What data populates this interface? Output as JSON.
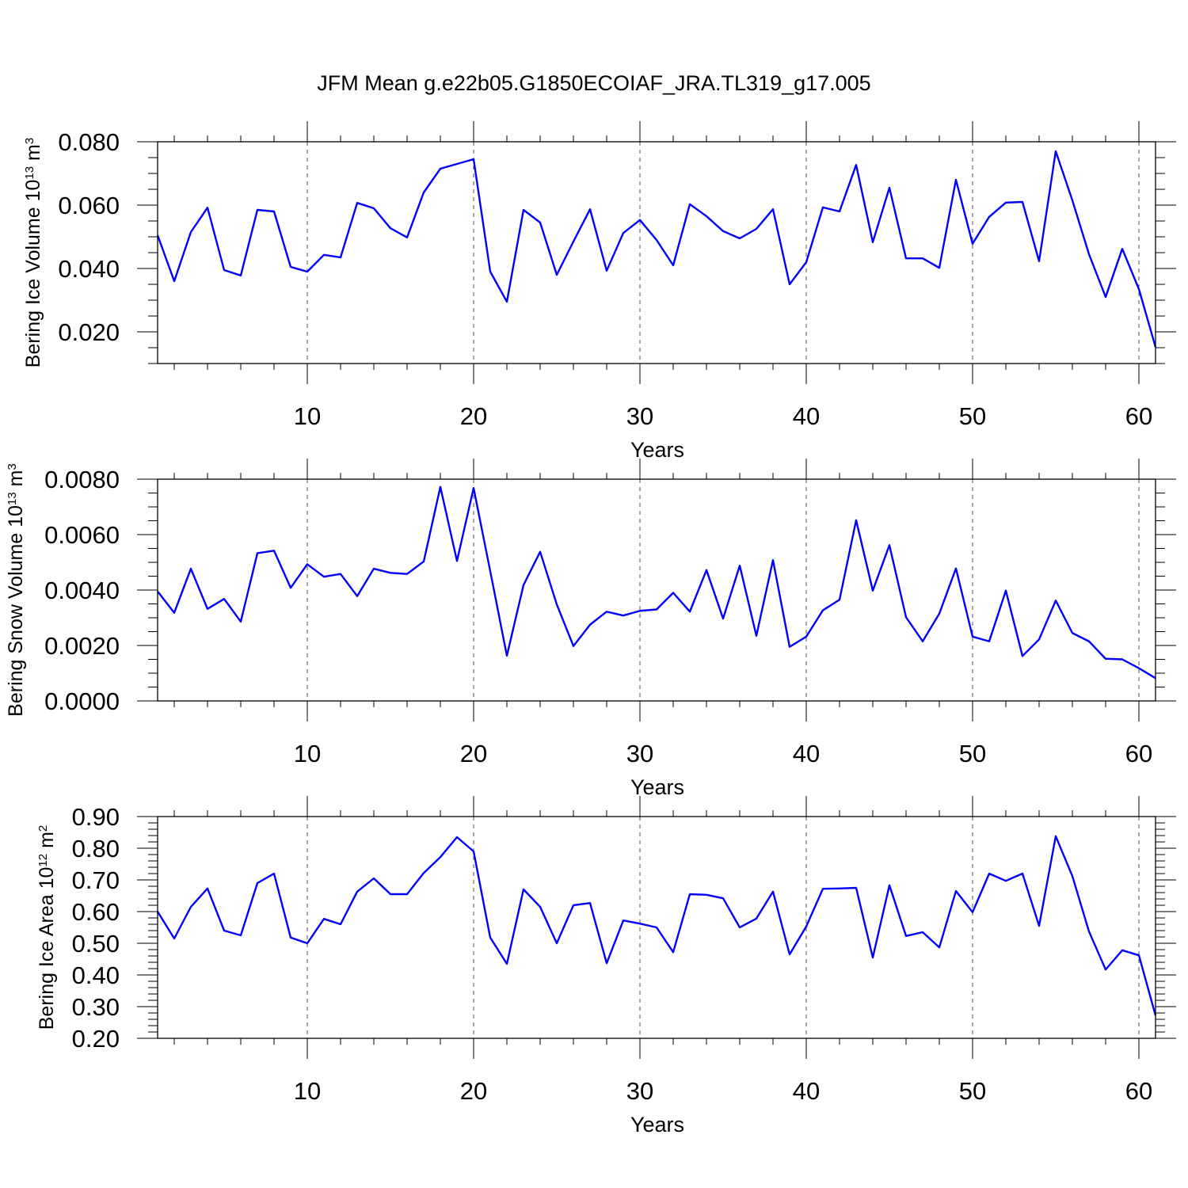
{
  "title": "JFM Mean g.e22b05.G1850ECOIAF_JRA.TL319_g17.005",
  "line_color": "#0000ff",
  "chart_data": [
    {
      "type": "line",
      "id": "ice_volume",
      "xlabel": "Years",
      "ylabel": {
        "main": "Bering Ice Volume 10",
        "sup1": "13",
        "mid": " m",
        "sup2": "3"
      },
      "xlim": [
        1,
        61
      ],
      "ylim": [
        0.01,
        0.08
      ],
      "x_ticks": [
        10,
        20,
        30,
        40,
        50,
        60
      ],
      "x_tick_labels": [
        "10",
        "20",
        "30",
        "40",
        "50",
        "60"
      ],
      "y_ticks": [
        0.02,
        0.04,
        0.06,
        0.08
      ],
      "y_tick_labels": [
        "0.020",
        "0.040",
        "0.060",
        "0.080"
      ],
      "grid": "vertical dashed at labeled x ticks",
      "series": [
        {
          "name": "Bering Ice Volume",
          "x_start": 1,
          "values": [
            0.0505,
            0.036,
            0.0515,
            0.0592,
            0.0395,
            0.0378,
            0.0585,
            0.058,
            0.0405,
            0.039,
            0.0443,
            0.0435,
            0.0607,
            0.059,
            0.0527,
            0.0498,
            0.064,
            0.0715,
            0.073,
            0.0745,
            0.039,
            0.0295,
            0.0585,
            0.0545,
            0.038,
            0.0485,
            0.0587,
            0.0393,
            0.0512,
            0.0553,
            0.049,
            0.041,
            0.0603,
            0.0565,
            0.0518,
            0.0495,
            0.0525,
            0.0587,
            0.035,
            0.042,
            0.0593,
            0.058,
            0.0727,
            0.0483,
            0.0655,
            0.0432,
            0.0432,
            0.0402,
            0.068,
            0.0478,
            0.0563,
            0.0608,
            0.061,
            0.0423,
            0.077,
            0.0615,
            0.0445,
            0.031,
            0.0462,
            0.0335,
            0.0152
          ]
        }
      ]
    },
    {
      "type": "line",
      "id": "snow_volume",
      "xlabel": "Years",
      "ylabel": {
        "main": "Bering Snow Volume 10",
        "sup1": "13",
        "mid": " m",
        "sup2": "3"
      },
      "xlim": [
        1,
        61
      ],
      "ylim": [
        0.0,
        0.008
      ],
      "x_ticks": [
        10,
        20,
        30,
        40,
        50,
        60
      ],
      "x_tick_labels": [
        "10",
        "20",
        "30",
        "40",
        "50",
        "60"
      ],
      "y_ticks": [
        0.0,
        0.002,
        0.004,
        0.006,
        0.008
      ],
      "y_tick_labels": [
        "0.0000",
        "0.0020",
        "0.0040",
        "0.0060",
        "0.0080"
      ],
      "grid": "vertical dashed at labeled x ticks",
      "series": [
        {
          "name": "Bering Snow Volume",
          "x_start": 1,
          "values": [
            0.00395,
            0.00318,
            0.00477,
            0.00332,
            0.00368,
            0.00286,
            0.00533,
            0.00542,
            0.00408,
            0.00493,
            0.00448,
            0.00458,
            0.00378,
            0.00477,
            0.00462,
            0.00458,
            0.00503,
            0.00772,
            0.00505,
            0.00768,
            0.00468,
            0.00163,
            0.00418,
            0.00538,
            0.00348,
            0.00198,
            0.00275,
            0.00322,
            0.00308,
            0.00325,
            0.0033,
            0.0039,
            0.00322,
            0.00472,
            0.00297,
            0.00488,
            0.00235,
            0.00508,
            0.00195,
            0.00232,
            0.00327,
            0.00365,
            0.00652,
            0.00398,
            0.00562,
            0.00302,
            0.00215,
            0.00315,
            0.00478,
            0.00232,
            0.00215,
            0.00398,
            0.00162,
            0.00222,
            0.00362,
            0.00245,
            0.00215,
            0.00152,
            0.0015,
            0.00118,
            0.00082
          ]
        }
      ]
    },
    {
      "type": "line",
      "id": "ice_area",
      "xlabel": "Years",
      "ylabel": {
        "main": "Bering Ice Area 10",
        "sup1": "12",
        "mid": " m",
        "sup2": "2"
      },
      "xlim": [
        1,
        61
      ],
      "ylim": [
        0.2,
        0.9
      ],
      "x_ticks": [
        10,
        20,
        30,
        40,
        50,
        60
      ],
      "x_tick_labels": [
        "10",
        "20",
        "30",
        "40",
        "50",
        "60"
      ],
      "y_ticks": [
        0.2,
        0.3,
        0.4,
        0.5,
        0.6,
        0.7,
        0.8,
        0.9
      ],
      "y_tick_labels": [
        "0.20",
        "0.30",
        "0.40",
        "0.50",
        "0.60",
        "0.70",
        "0.80",
        "0.90"
      ],
      "grid": "vertical dashed at labeled x ticks",
      "series": [
        {
          "name": "Bering Ice Area",
          "x_start": 1,
          "values": [
            0.6,
            0.515,
            0.615,
            0.673,
            0.54,
            0.525,
            0.69,
            0.72,
            0.518,
            0.5,
            0.577,
            0.56,
            0.663,
            0.705,
            0.655,
            0.655,
            0.722,
            0.772,
            0.835,
            0.79,
            0.518,
            0.435,
            0.67,
            0.615,
            0.5,
            0.62,
            0.627,
            0.437,
            0.572,
            0.562,
            0.55,
            0.472,
            0.655,
            0.653,
            0.642,
            0.55,
            0.578,
            0.663,
            0.465,
            0.553,
            0.672,
            0.673,
            0.675,
            0.455,
            0.683,
            0.523,
            0.535,
            0.487,
            0.665,
            0.598,
            0.72,
            0.697,
            0.72,
            0.555,
            0.838,
            0.712,
            0.537,
            0.417,
            0.478,
            0.462,
            0.272
          ]
        }
      ]
    }
  ]
}
